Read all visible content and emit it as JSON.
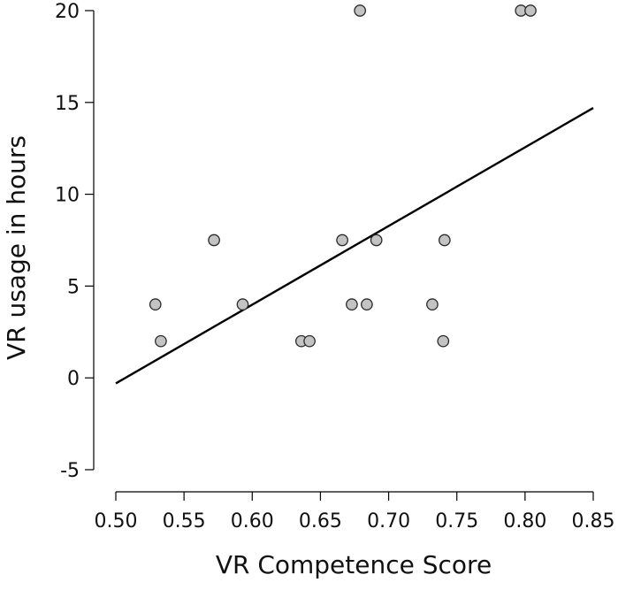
{
  "chart_data": {
    "type": "scatter",
    "xlabel": "VR Competence Score",
    "ylabel": "VR usage in hours",
    "xlim": [
      0.5,
      0.85
    ],
    "ylim": [
      -5,
      20
    ],
    "x_ticks": [
      "0.50",
      "0.55",
      "0.60",
      "0.65",
      "0.70",
      "0.75",
      "0.80",
      "0.85"
    ],
    "y_ticks": [
      "-5",
      "0",
      "5",
      "10",
      "15",
      "20"
    ],
    "grid": false,
    "points": [
      {
        "x": 0.529,
        "y": 4
      },
      {
        "x": 0.533,
        "y": 2
      },
      {
        "x": 0.572,
        "y": 7.5
      },
      {
        "x": 0.593,
        "y": 4
      },
      {
        "x": 0.636,
        "y": 2
      },
      {
        "x": 0.642,
        "y": 2
      },
      {
        "x": 0.666,
        "y": 7.5
      },
      {
        "x": 0.673,
        "y": 4
      },
      {
        "x": 0.679,
        "y": 20
      },
      {
        "x": 0.684,
        "y": 4
      },
      {
        "x": 0.691,
        "y": 7.5
      },
      {
        "x": 0.732,
        "y": 4
      },
      {
        "x": 0.74,
        "y": 2
      },
      {
        "x": 0.741,
        "y": 7.5
      },
      {
        "x": 0.797,
        "y": 20
      },
      {
        "x": 0.804,
        "y": 20
      }
    ],
    "fit_line": {
      "x": [
        0.5,
        0.85
      ],
      "y": [
        -0.3,
        14.7
      ]
    },
    "colors": {
      "point_fill": "#c3c3c3",
      "point_stroke": "#2a2a2a",
      "line": "#000000"
    }
  }
}
